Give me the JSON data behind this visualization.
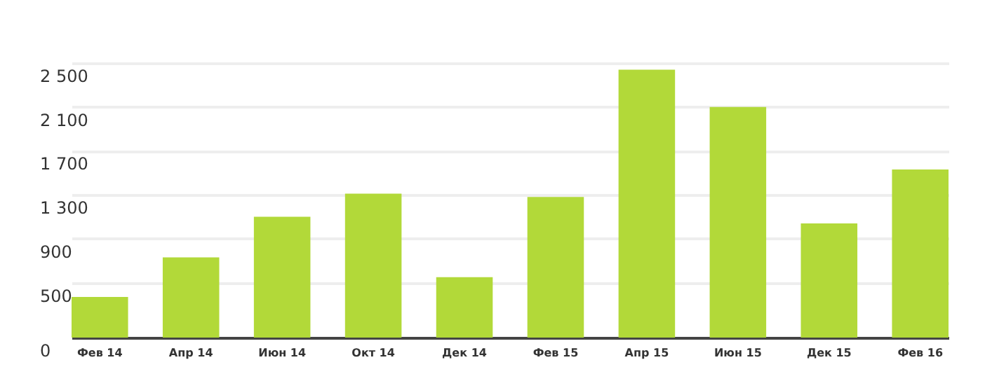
{
  "chart_data": {
    "type": "bar",
    "categories": [
      "Фев 14",
      "Апр 14",
      "Июн 14",
      "Окт 14",
      "Дек 14",
      "Фев 15",
      "Апр 15",
      "Июн 15",
      "Дек 15",
      "Фев 16"
    ],
    "values": [
      370,
      730,
      1100,
      1310,
      550,
      1280,
      2440,
      2100,
      1040,
      1530
    ],
    "color": "#b2d939",
    "ylim": [
      0,
      2500
    ],
    "yticks": [
      0,
      500,
      900,
      {
        "value": 1300,
        "label": "1 300"
      },
      {
        "value": 1700,
        "label": "1 700"
      },
      {
        "value": 2100,
        "label": "2 100"
      },
      {
        "value": 2500,
        "label": "2 500"
      }
    ],
    "grid": "y"
  }
}
